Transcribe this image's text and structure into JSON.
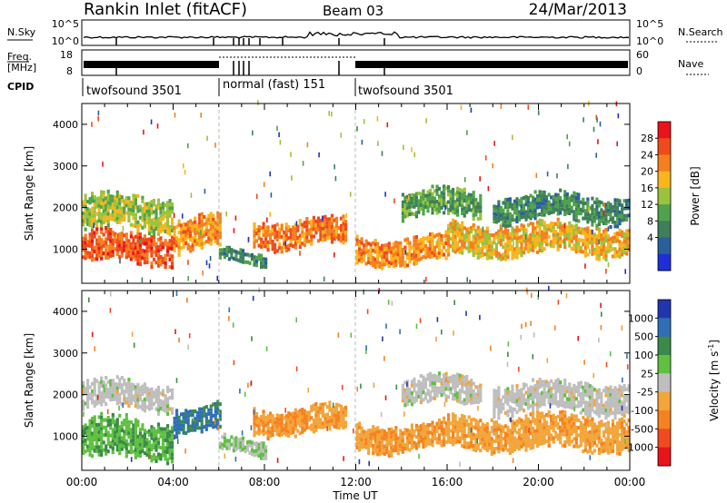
{
  "header": {
    "title": "Rankin Inlet (fitACF)",
    "beam": "Beam 03",
    "date": "24/Mar/2013"
  },
  "status_panels": {
    "nsky_label": "N.Sky",
    "nsky_ticks": [
      "10^5",
      "10^0"
    ],
    "nsearch_label": "N.Search",
    "nsearch_ticks": [
      "10^5",
      "10^0"
    ],
    "freq_label": "Freq.",
    "freq_unit": "[MHz]",
    "freq_ticks": [
      "18",
      "8"
    ],
    "nave_label": "Nave",
    "nave_ticks": [
      "60",
      "0"
    ],
    "cpid_label": "CPID",
    "cpid_segments": [
      {
        "label": "twofsound 3501",
        "start": 0,
        "end": 6
      },
      {
        "label": "normal (fast) 151",
        "start": 6,
        "end": 12
      },
      {
        "label": "twofsound 3501",
        "start": 12,
        "end": 24
      }
    ]
  },
  "panels": {
    "ylabel": "Slant Range [km]",
    "yticks": [
      "1000",
      "2000",
      "3000",
      "4000"
    ],
    "xlabel": "Time UT",
    "xticks": [
      "00:00",
      "04:00",
      "08:00",
      "12:00",
      "16:00",
      "20:00",
      "00:00"
    ]
  },
  "power_colorbar": {
    "label": "Power [dB]",
    "ticks": [
      "28",
      "24",
      "20",
      "16",
      "12",
      "8",
      "4"
    ],
    "colors": [
      "#e8141a",
      "#f04a1c",
      "#f57e1f",
      "#f8b51c",
      "#9bc23c",
      "#4fa34a",
      "#3f7f5a",
      "#2a5f9e",
      "#1f2fd8"
    ]
  },
  "velocity_colorbar": {
    "label": "Velocity [m s",
    "label_sup": "-1",
    "label_close": "]",
    "ticks": [
      "1000",
      "500",
      "100",
      "25",
      "-25",
      "-100",
      "-500",
      "-1000"
    ],
    "colors": [
      "#2235b0",
      "#2f6fb5",
      "#3a8a4a",
      "#5fc040",
      "#bebebe",
      "#f2a53a",
      "#f58220",
      "#f24a1e",
      "#e8141a"
    ]
  },
  "chart_data": {
    "type": "heatmap",
    "title": "Rankin Inlet (fitACF)",
    "xlabel": "Time UT",
    "ylabel": "Slant Range [km]",
    "xlim": [
      0,
      24
    ],
    "ylim": [
      180,
      4500
    ],
    "x_tick_values": [
      0,
      4,
      8,
      12,
      16,
      20,
      24
    ],
    "y_tick_values": [
      1000,
      2000,
      3000,
      4000
    ],
    "cpid_boundaries_ut": [
      6,
      12
    ],
    "power_scan_bands": [
      {
        "time_start": 0.0,
        "time_end": 4.0,
        "range_low": 600,
        "range_high": 1400,
        "power_db": 26
      },
      {
        "time_start": 0.0,
        "time_end": 4.0,
        "range_low": 1400,
        "range_high": 2300,
        "power_db": 16
      },
      {
        "time_start": 4.0,
        "time_end": 6.0,
        "range_low": 900,
        "range_high": 1800,
        "power_db": 22
      },
      {
        "time_start": 6.0,
        "time_end": 8.0,
        "range_low": 600,
        "range_high": 900,
        "power_db": 10
      },
      {
        "time_start": 7.5,
        "time_end": 11.5,
        "range_low": 1000,
        "range_high": 1700,
        "power_db": 24
      },
      {
        "time_start": 12.0,
        "time_end": 16.0,
        "range_low": 600,
        "range_high": 1300,
        "power_db": 22
      },
      {
        "time_start": 14.0,
        "time_end": 17.5,
        "range_low": 1700,
        "range_high": 2400,
        "power_db": 12
      },
      {
        "time_start": 16.0,
        "time_end": 24.0,
        "range_low": 800,
        "range_high": 1600,
        "power_db": 20
      },
      {
        "time_start": 18.0,
        "time_end": 24.0,
        "range_low": 1600,
        "range_high": 2300,
        "power_db": 10
      }
    ],
    "velocity_scan_bands": [
      {
        "time_start": 0.0,
        "time_end": 4.0,
        "range_low": 400,
        "range_high": 1400,
        "velocity_ms": 300
      },
      {
        "time_start": 0.0,
        "time_end": 4.0,
        "range_low": 1600,
        "range_high": 2300,
        "velocity_ms": 0
      },
      {
        "time_start": 4.0,
        "time_end": 6.0,
        "range_low": 1000,
        "range_high": 1700,
        "velocity_ms": 600
      },
      {
        "time_start": 6.0,
        "time_end": 8.0,
        "range_low": 500,
        "range_high": 900,
        "velocity_ms": 80
      },
      {
        "time_start": 7.5,
        "time_end": 11.5,
        "range_low": 1000,
        "range_high": 1700,
        "velocity_ms": -300
      },
      {
        "time_start": 12.0,
        "time_end": 16.0,
        "range_low": 600,
        "range_high": 1300,
        "velocity_ms": -300
      },
      {
        "time_start": 14.0,
        "time_end": 17.5,
        "range_low": 1700,
        "range_high": 2400,
        "velocity_ms": 0
      },
      {
        "time_start": 16.0,
        "time_end": 24.0,
        "range_low": 600,
        "range_high": 1500,
        "velocity_ms": -250
      },
      {
        "time_start": 18.0,
        "time_end": 24.0,
        "range_low": 1500,
        "range_high": 2300,
        "velocity_ms": 0
      }
    ]
  }
}
